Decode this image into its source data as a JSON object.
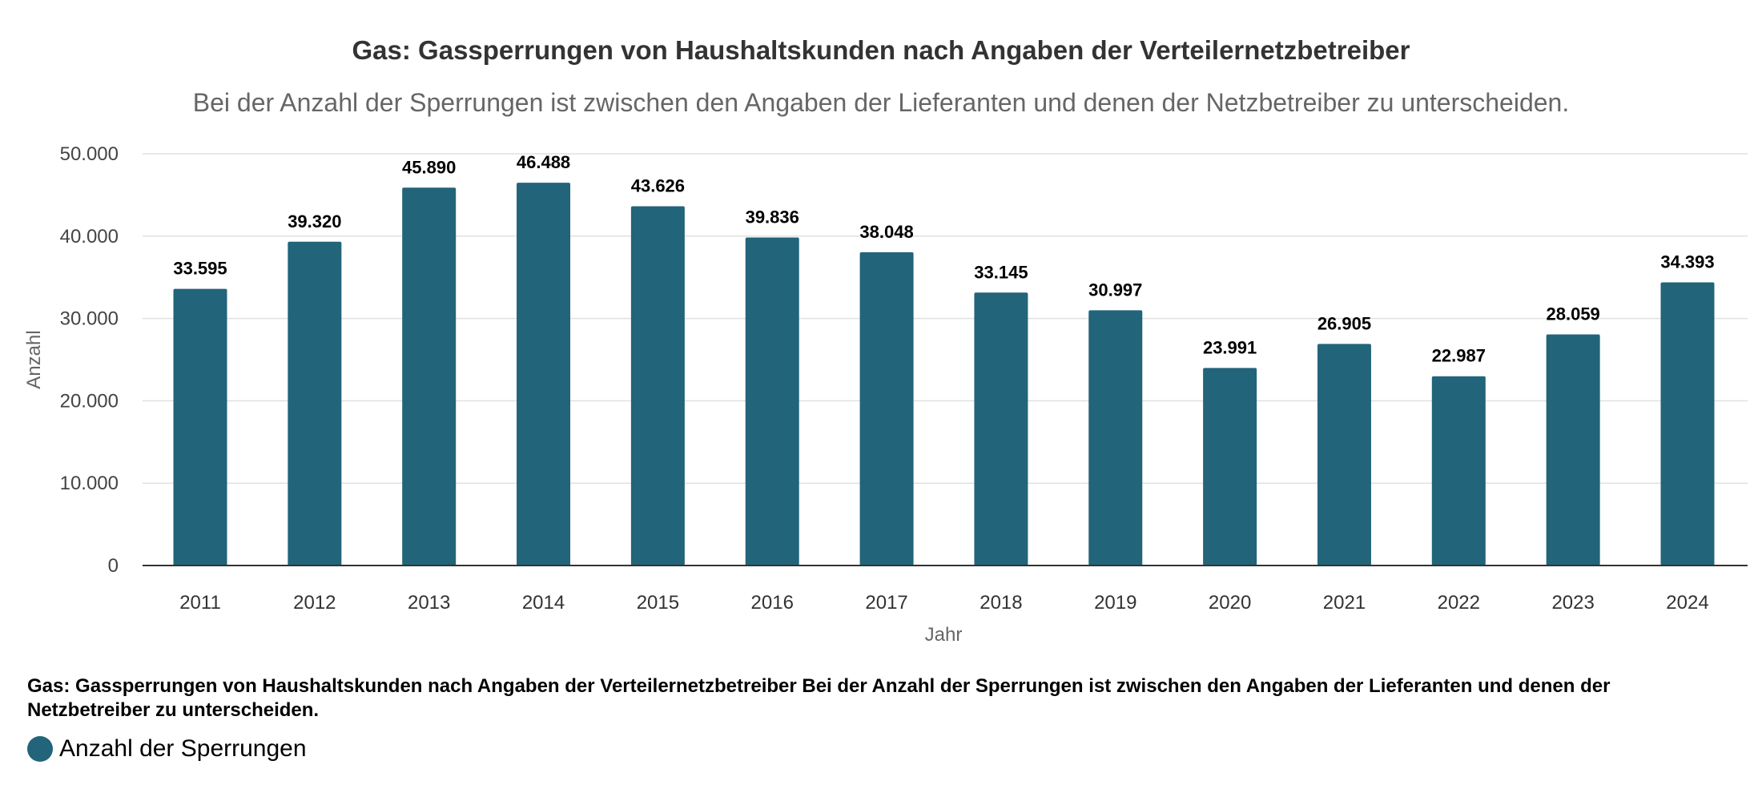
{
  "chart_data": {
    "type": "bar",
    "title": "Gas: Gassperrungen von Haushaltskunden nach Angaben der Verteilernetzbetreiber",
    "subtitle": "Bei der Anzahl der Sperrungen ist zwischen den Angaben der Lieferanten und denen der Netzbetreiber zu unterscheiden.",
    "xlabel": "Jahr",
    "ylabel": "Anzahl",
    "categories": [
      "2011",
      "2012",
      "2013",
      "2014",
      "2015",
      "2016",
      "2017",
      "2018",
      "2019",
      "2020",
      "2021",
      "2022",
      "2023",
      "2024"
    ],
    "series": [
      {
        "name": "Anzahl der Sperrungen",
        "values": [
          33595,
          39320,
          45890,
          46488,
          43626,
          39836,
          38048,
          33145,
          30997,
          23991,
          26905,
          22987,
          28059,
          34393
        ],
        "color": "#22647a"
      }
    ],
    "data_labels": [
      "33.595",
      "39.320",
      "45.890",
      "46.488",
      "43.626",
      "39.836",
      "38.048",
      "33.145",
      "30.997",
      "23.991",
      "26.905",
      "22.987",
      "28.059",
      "34.393"
    ],
    "ylim": [
      0,
      50000
    ],
    "yticks": [
      0,
      10000,
      20000,
      30000,
      40000,
      50000
    ],
    "ytick_labels": [
      "0",
      "10.000",
      "20.000",
      "30.000",
      "40.000",
      "50.000"
    ],
    "grid": true,
    "legend_position": "bottom-left"
  },
  "footer": {
    "caption": "Gas: Gassperrungen von Haushaltskunden nach Angaben der Verteilernetzbetreiber Bei der Anzahl der Sperrungen ist zwischen den Angaben der Lieferanten und denen der Netzbetreiber zu unterscheiden."
  }
}
